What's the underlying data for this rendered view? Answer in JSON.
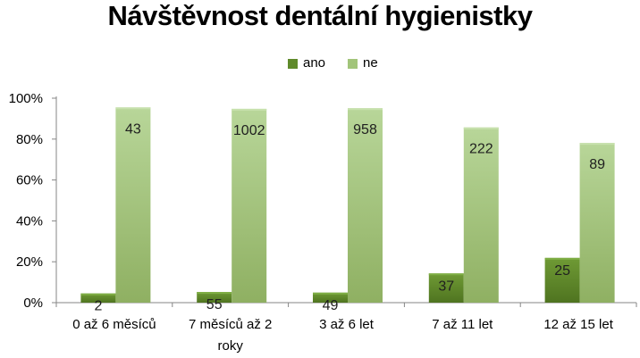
{
  "chart_data": {
    "type": "bar",
    "title": "Návštěvnost dentální hygienistky",
    "categories": [
      "0 až 6 měsíců",
      "7 měsíců až 2 roky",
      "3  až 6 let",
      "7 až 11 let",
      "12 až 15 let"
    ],
    "category_lines": [
      [
        "0 až 6 měsíců"
      ],
      [
        "7 měsíců až 2",
        "roky"
      ],
      [
        "3  až 6 let"
      ],
      [
        "7 až 11 let"
      ],
      [
        "12 až 15 let"
      ]
    ],
    "series": [
      {
        "name": "ano",
        "values": [
          4.5,
          5.2,
          4.9,
          14.3,
          21.9
        ],
        "labels": [
          "2",
          "55",
          "49",
          "37",
          "25"
        ],
        "color": "#5f8a2a"
      },
      {
        "name": "ne",
        "values": [
          95.5,
          94.8,
          95.1,
          85.7,
          78.1
        ],
        "labels": [
          "43",
          "1002",
          "958",
          "222",
          "89"
        ],
        "color": "#a2c57a"
      }
    ],
    "ylim": [
      0,
      100
    ],
    "yticks": [
      0,
      20,
      40,
      60,
      80,
      100
    ],
    "ytick_labels": [
      "0%",
      "20%",
      "40%",
      "60%",
      "80%",
      "100%"
    ],
    "xlabel": "",
    "ylabel": "",
    "legend_position": "top",
    "grid": false
  }
}
